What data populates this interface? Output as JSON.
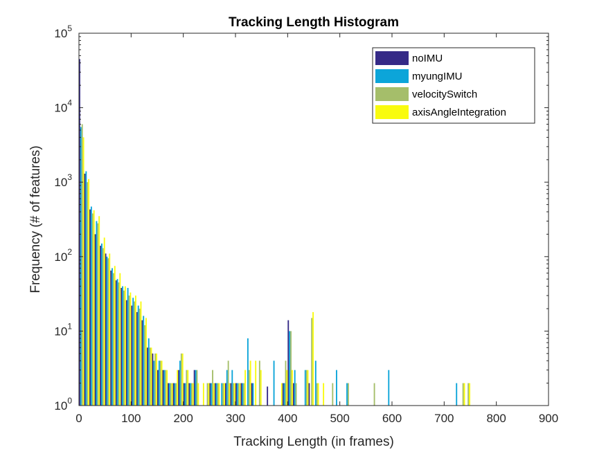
{
  "chart_data": {
    "type": "bar",
    "title": "Tracking Length Histogram",
    "xlabel": "Tracking Length (in frames)",
    "ylabel": "Frequency (# of features)",
    "xlim": [
      0,
      900
    ],
    "ylim": [
      1,
      100000
    ],
    "yscale": "log",
    "grid": false,
    "legend_position": "top-right",
    "bin_width": 10,
    "x_ticks": [
      "0",
      "100",
      "200",
      "300",
      "400",
      "500",
      "600",
      "700",
      "800",
      "900"
    ],
    "y_ticks": [
      {
        "base": "10",
        "exp": "0"
      },
      {
        "base": "10",
        "exp": "1"
      },
      {
        "base": "10",
        "exp": "2"
      },
      {
        "base": "10",
        "exp": "3"
      },
      {
        "base": "10",
        "exp": "4"
      },
      {
        "base": "10",
        "exp": "5"
      }
    ],
    "series": [
      {
        "name": "noIMU",
        "color": "#352a87",
        "points": [
          [
            5,
            45000
          ],
          [
            15,
            1300
          ],
          [
            25,
            430
          ],
          [
            35,
            200
          ],
          [
            45,
            140
          ],
          [
            55,
            110
          ],
          [
            65,
            65
          ],
          [
            75,
            48
          ],
          [
            85,
            38
          ],
          [
            95,
            26
          ],
          [
            105,
            22
          ],
          [
            115,
            18
          ],
          [
            125,
            14
          ],
          [
            135,
            6
          ],
          [
            145,
            5
          ],
          [
            155,
            3
          ],
          [
            165,
            3
          ],
          [
            175,
            2
          ],
          [
            185,
            2
          ],
          [
            195,
            3
          ],
          [
            205,
            2
          ],
          [
            215,
            2
          ],
          [
            225,
            3
          ],
          [
            235,
            1
          ],
          [
            245,
            1
          ],
          [
            255,
            2
          ],
          [
            265,
            2
          ],
          [
            275,
            1
          ],
          [
            285,
            2
          ],
          [
            295,
            2
          ],
          [
            305,
            2
          ],
          [
            315,
            2
          ],
          [
            325,
            1
          ],
          [
            335,
            2
          ],
          [
            345,
            1
          ],
          [
            365,
            1.8
          ],
          [
            395,
            2
          ],
          [
            405,
            14
          ],
          [
            415,
            2
          ],
          [
            425,
            1
          ],
          [
            445,
            2
          ],
          [
            475,
            1
          ],
          [
            495,
            1
          ],
          [
            525,
            1
          ],
          [
            595,
            1
          ],
          [
            725,
            1
          ]
        ]
      },
      {
        "name": "myungIMU",
        "color": "#0ca5d9",
        "points": [
          [
            5,
            5500
          ],
          [
            15,
            1400
          ],
          [
            25,
            470
          ],
          [
            35,
            300
          ],
          [
            45,
            150
          ],
          [
            55,
            100
          ],
          [
            65,
            70
          ],
          [
            75,
            50
          ],
          [
            85,
            40
          ],
          [
            95,
            38
          ],
          [
            105,
            28
          ],
          [
            115,
            22
          ],
          [
            125,
            16
          ],
          [
            135,
            8
          ],
          [
            145,
            4
          ],
          [
            155,
            4
          ],
          [
            165,
            3
          ],
          [
            175,
            2
          ],
          [
            185,
            2
          ],
          [
            195,
            4
          ],
          [
            205,
            2
          ],
          [
            215,
            2
          ],
          [
            225,
            3
          ],
          [
            235,
            1
          ],
          [
            245,
            1
          ],
          [
            255,
            2
          ],
          [
            265,
            2
          ],
          [
            275,
            2
          ],
          [
            285,
            3
          ],
          [
            295,
            3
          ],
          [
            305,
            2
          ],
          [
            315,
            2
          ],
          [
            325,
            8
          ],
          [
            335,
            2
          ],
          [
            345,
            1
          ],
          [
            375,
            4
          ],
          [
            385,
            1
          ],
          [
            395,
            2
          ],
          [
            405,
            10
          ],
          [
            415,
            3
          ],
          [
            435,
            3
          ],
          [
            455,
            4
          ],
          [
            495,
            3
          ],
          [
            515,
            2
          ],
          [
            595,
            3
          ],
          [
            725,
            2
          ]
        ]
      },
      {
        "name": "velocitySwitch",
        "color": "#a5be6a",
        "points": [
          [
            5,
            6000
          ],
          [
            15,
            1000
          ],
          [
            25,
            380
          ],
          [
            35,
            280
          ],
          [
            45,
            130
          ],
          [
            55,
            95
          ],
          [
            65,
            60
          ],
          [
            75,
            45
          ],
          [
            85,
            35
          ],
          [
            95,
            30
          ],
          [
            105,
            25
          ],
          [
            115,
            20
          ],
          [
            125,
            12
          ],
          [
            135,
            6
          ],
          [
            145,
            5
          ],
          [
            155,
            4
          ],
          [
            165,
            3
          ],
          [
            175,
            2
          ],
          [
            185,
            2
          ],
          [
            195,
            5
          ],
          [
            205,
            3
          ],
          [
            215,
            2
          ],
          [
            225,
            3
          ],
          [
            235,
            1
          ],
          [
            245,
            2
          ],
          [
            255,
            3
          ],
          [
            265,
            2
          ],
          [
            275,
            2
          ],
          [
            285,
            4
          ],
          [
            295,
            2
          ],
          [
            305,
            2
          ],
          [
            315,
            2
          ],
          [
            325,
            3
          ],
          [
            335,
            1
          ],
          [
            345,
            4
          ],
          [
            375,
            1
          ],
          [
            385,
            1
          ],
          [
            395,
            4
          ],
          [
            405,
            10
          ],
          [
            415,
            2
          ],
          [
            435,
            3
          ],
          [
            445,
            15
          ],
          [
            455,
            2
          ],
          [
            465,
            1
          ],
          [
            485,
            2
          ],
          [
            515,
            2
          ],
          [
            565,
            2
          ],
          [
            735,
            2
          ],
          [
            745,
            2
          ]
        ]
      },
      {
        "name": "axisAngleIntegration",
        "color": "#f9fb0e",
        "points": [
          [
            5,
            4000
          ],
          [
            15,
            1100
          ],
          [
            25,
            420
          ],
          [
            35,
            350
          ],
          [
            45,
            180
          ],
          [
            55,
            110
          ],
          [
            65,
            75
          ],
          [
            75,
            60
          ],
          [
            85,
            40
          ],
          [
            95,
            33
          ],
          [
            105,
            30
          ],
          [
            115,
            25
          ],
          [
            125,
            15
          ],
          [
            135,
            6
          ],
          [
            145,
            5
          ],
          [
            155,
            4
          ],
          [
            165,
            3
          ],
          [
            175,
            2
          ],
          [
            185,
            3
          ],
          [
            195,
            5
          ],
          [
            205,
            3
          ],
          [
            215,
            2
          ],
          [
            225,
            2
          ],
          [
            235,
            2
          ],
          [
            245,
            2
          ],
          [
            255,
            2
          ],
          [
            265,
            2
          ],
          [
            275,
            2
          ],
          [
            285,
            2
          ],
          [
            295,
            2
          ],
          [
            305,
            2
          ],
          [
            315,
            3
          ],
          [
            325,
            4
          ],
          [
            335,
            4
          ],
          [
            345,
            3
          ],
          [
            385,
            2
          ],
          [
            395,
            3
          ],
          [
            405,
            3
          ],
          [
            415,
            1
          ],
          [
            435,
            3
          ],
          [
            445,
            18
          ],
          [
            455,
            2
          ],
          [
            465,
            2
          ],
          [
            485,
            1
          ],
          [
            505,
            1
          ],
          [
            565,
            1
          ],
          [
            735,
            2
          ],
          [
            745,
            2
          ]
        ]
      }
    ]
  }
}
